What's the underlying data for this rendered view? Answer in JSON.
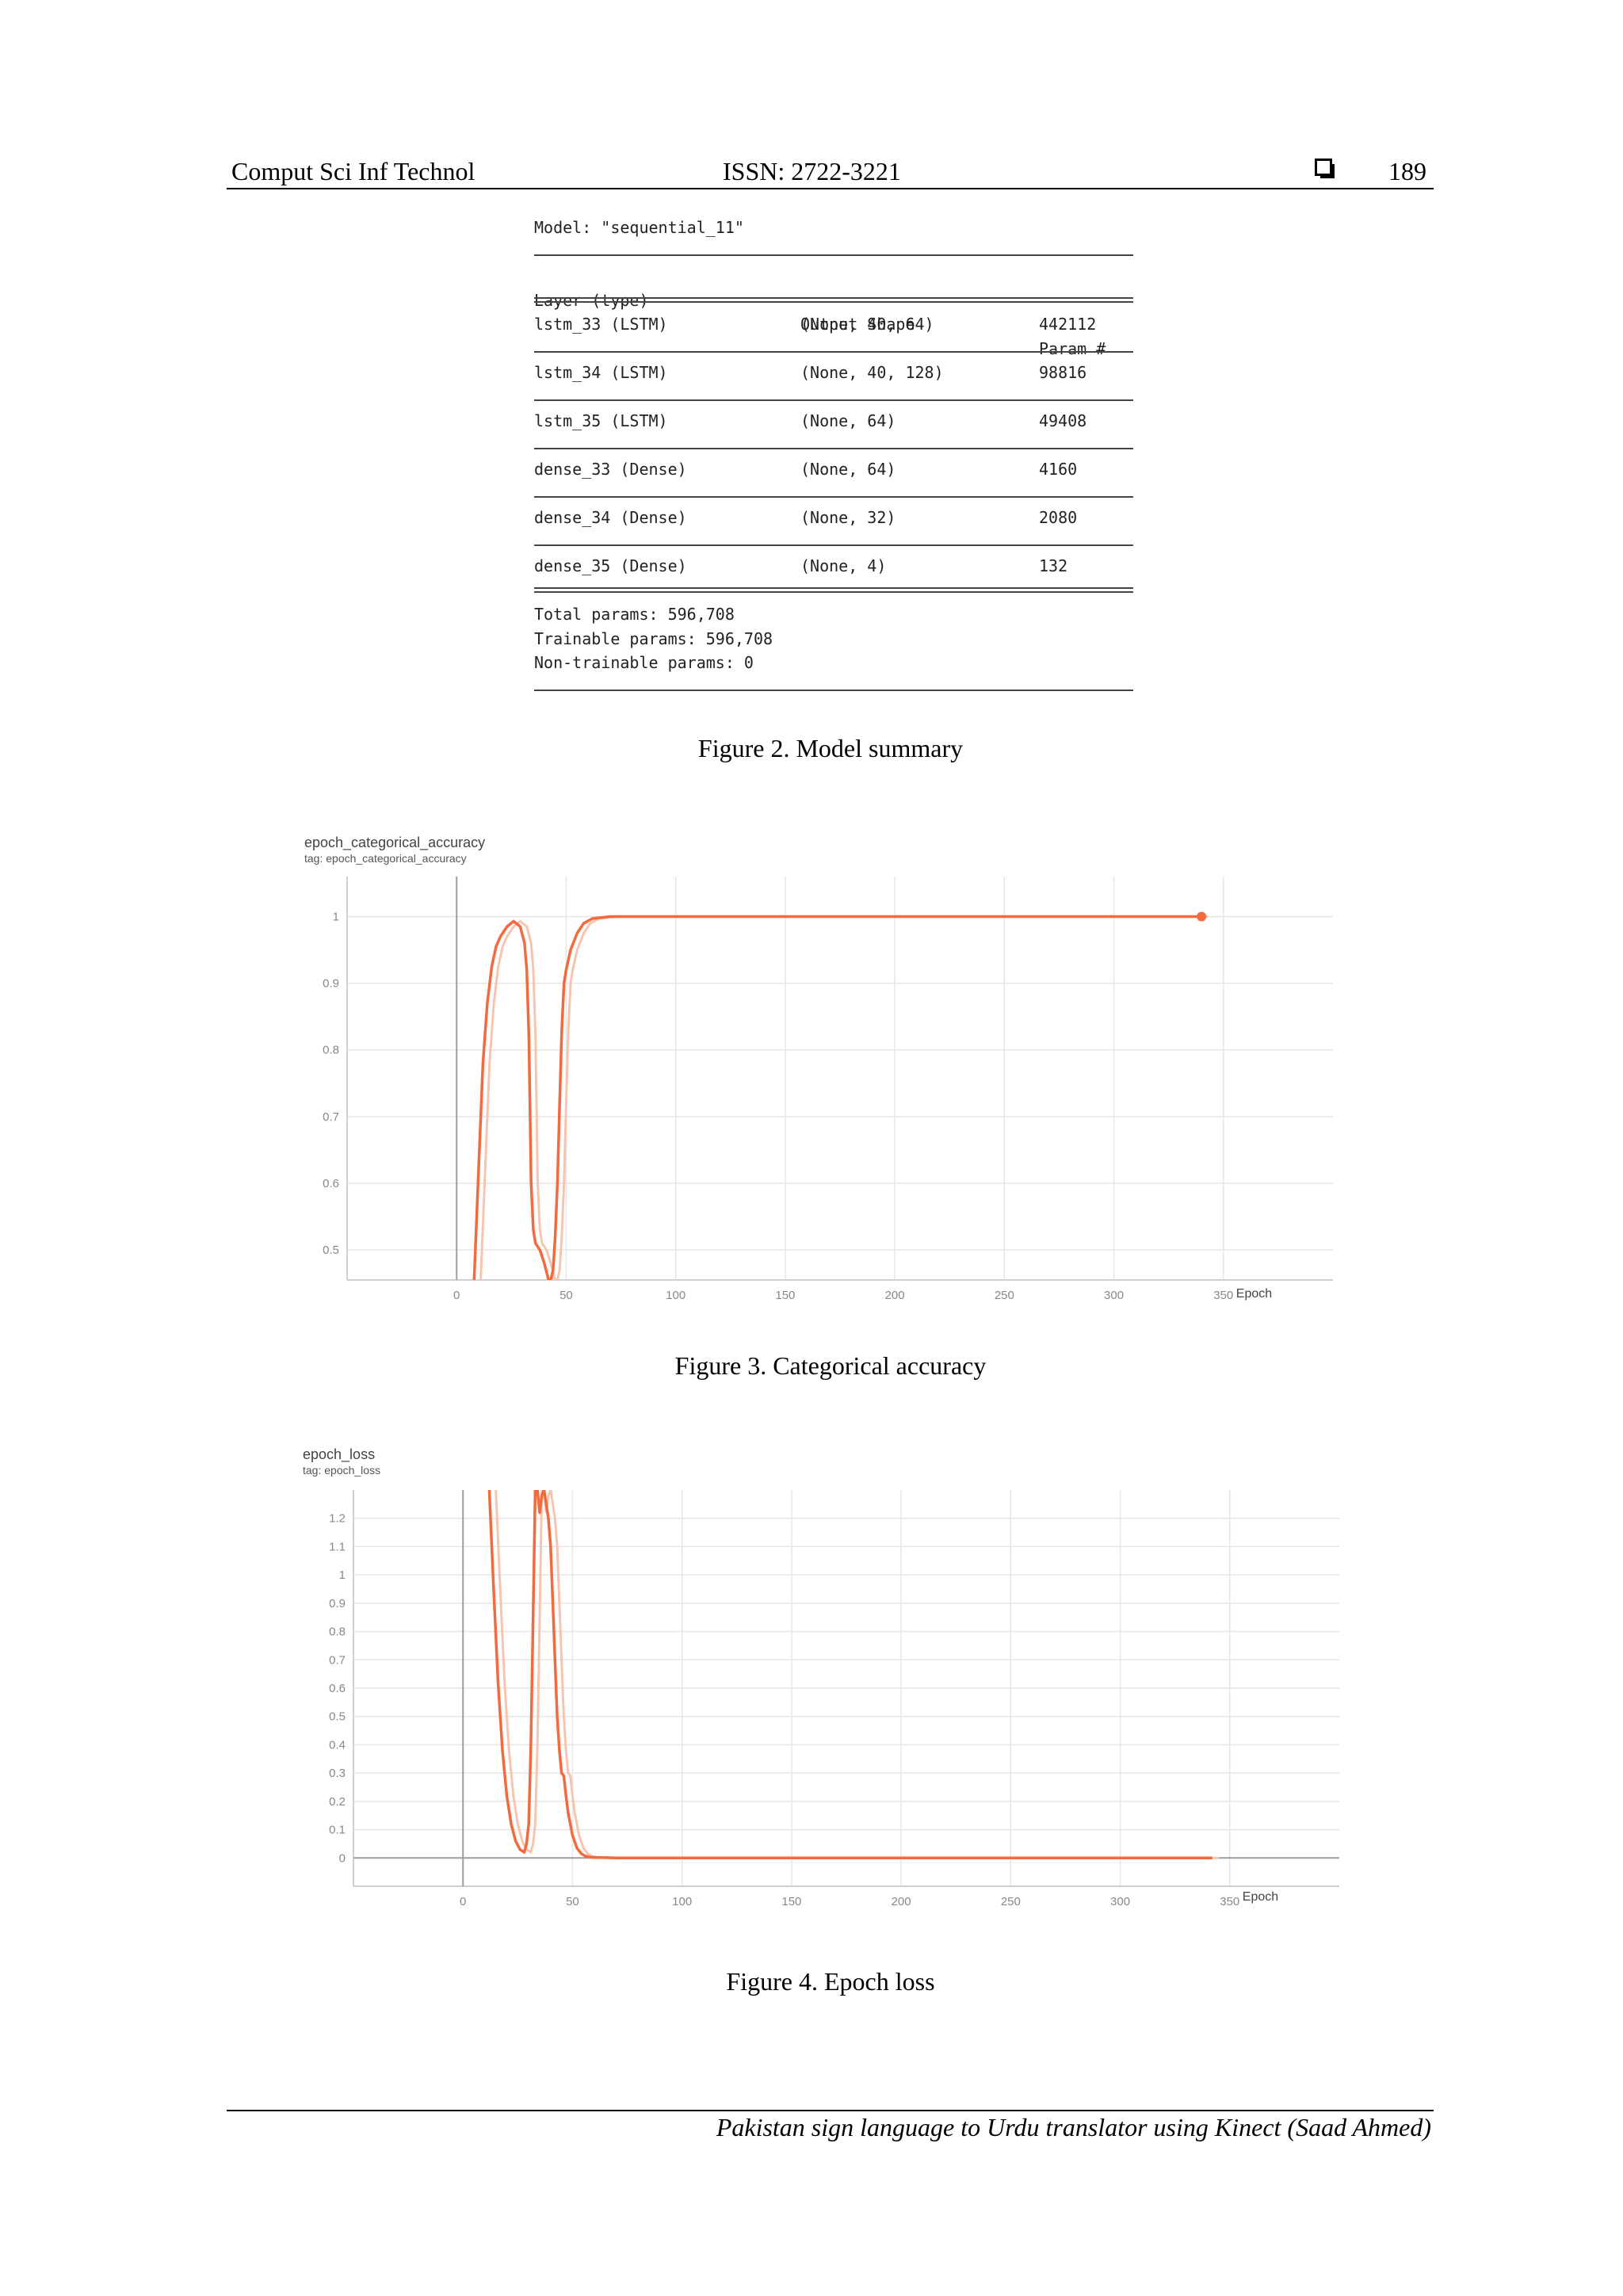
{
  "header": {
    "journal": "Comput Sci Inf Technol",
    "issn": "ISSN: 2722-3221",
    "page_number": "189"
  },
  "model_summary": {
    "model_line": "Model: \"sequential_11\"",
    "col_layer": "Layer (type)",
    "col_shape": "Output Shape",
    "col_param": "Param #",
    "rows": [
      {
        "layer": "lstm_33 (LSTM)",
        "shape": "(None, 40, 64)",
        "param": "442112"
      },
      {
        "layer": "lstm_34 (LSTM)",
        "shape": "(None, 40, 128)",
        "param": "98816"
      },
      {
        "layer": "lstm_35 (LSTM)",
        "shape": "(None, 64)",
        "param": "49408"
      },
      {
        "layer": "dense_33 (Dense)",
        "shape": "(None, 64)",
        "param": "4160"
      },
      {
        "layer": "dense_34 (Dense)",
        "shape": "(None, 32)",
        "param": "2080"
      },
      {
        "layer": "dense_35 (Dense)",
        "shape": "(None, 4)",
        "param": "132"
      }
    ],
    "total": "Total params: 596,708",
    "trainable": "Trainable params: 596,708",
    "non_trainable": "Non-trainable params: 0"
  },
  "captions": {
    "fig2": "Figure 2. Model summary",
    "fig3": "Figure 3. Categorical accuracy",
    "fig4": "Figure 4. Epoch loss"
  },
  "footer": {
    "running_title": "Pakistan sign language to Urdu translator using Kinect (Saad Ahmed)"
  },
  "colors": {
    "series": "#f26a3d",
    "series_faint": "#f7c4b0",
    "grid": "#e6e6e6",
    "axis": "#9e9e9e"
  },
  "chart_data": [
    {
      "type": "line",
      "title": "epoch_categorical_accuracy",
      "subtitle": "tag: epoch_categorical_accuracy",
      "xlabel": "Epoch",
      "ylabel": "",
      "xlim": [
        -50,
        400
      ],
      "ylim": [
        0.455,
        1.06
      ],
      "x_ticks": [
        "0",
        "50",
        "100",
        "150",
        "200",
        "250",
        "300",
        "350"
      ],
      "y_ticks": [
        "0.5",
        "0.6",
        "0.7",
        "0.8",
        "0.9",
        "1"
      ],
      "grid": true,
      "series": [
        {
          "x": [
            8,
            10,
            12,
            14,
            16,
            18,
            20,
            23,
            26,
            29,
            31,
            32,
            33,
            34,
            35,
            36,
            38,
            40,
            42,
            43,
            44,
            45,
            46,
            47,
            48,
            49,
            50,
            52,
            55,
            58,
            62,
            70,
            80,
            100,
            150,
            200,
            250,
            300,
            340
          ],
          "y": [
            0.455,
            0.62,
            0.78,
            0.87,
            0.925,
            0.955,
            0.97,
            0.985,
            0.993,
            0.985,
            0.96,
            0.92,
            0.82,
            0.6,
            0.53,
            0.51,
            0.5,
            0.48,
            0.455,
            0.455,
            0.47,
            0.52,
            0.6,
            0.72,
            0.83,
            0.9,
            0.92,
            0.95,
            0.975,
            0.99,
            0.997,
            1.0,
            1.0,
            1.0,
            1.0,
            1.0,
            1.0,
            1.0,
            1.0
          ]
        }
      ]
    },
    {
      "type": "line",
      "title": "epoch_loss",
      "subtitle": "tag: epoch_loss",
      "xlabel": "Epoch",
      "ylabel": "",
      "xlim": [
        -50,
        400
      ],
      "ylim": [
        -0.1,
        1.3
      ],
      "x_ticks": [
        "0",
        "50",
        "100",
        "150",
        "200",
        "250",
        "300",
        "350"
      ],
      "y_ticks": [
        "0",
        "0.1",
        "0.2",
        "0.3",
        "0.4",
        "0.5",
        "0.6",
        "0.7",
        "0.8",
        "0.9",
        "1",
        "1.1",
        "1.2"
      ],
      "grid": true,
      "series": [
        {
          "x": [
            12,
            14,
            16,
            18,
            20,
            22,
            24,
            26,
            28,
            29,
            30,
            31,
            32,
            33,
            34,
            35,
            36,
            37,
            38,
            39,
            40,
            41,
            42,
            43,
            44,
            45,
            46,
            47,
            48,
            50,
            52,
            54,
            56,
            58,
            60,
            65,
            70,
            80,
            100,
            150,
            200,
            250,
            300,
            342
          ],
          "y": [
            1.3,
            0.95,
            0.62,
            0.38,
            0.22,
            0.12,
            0.06,
            0.03,
            0.02,
            0.05,
            0.12,
            0.4,
            0.85,
            1.3,
            1.3,
            1.22,
            1.28,
            1.3,
            1.25,
            1.2,
            1.1,
            0.9,
            0.7,
            0.5,
            0.38,
            0.3,
            0.29,
            0.22,
            0.16,
            0.08,
            0.035,
            0.015,
            0.006,
            0.003,
            0.002,
            0.001,
            0.0,
            0.0,
            0.0,
            0.0,
            0.0,
            0.0,
            0.0,
            0.0
          ]
        }
      ]
    }
  ]
}
